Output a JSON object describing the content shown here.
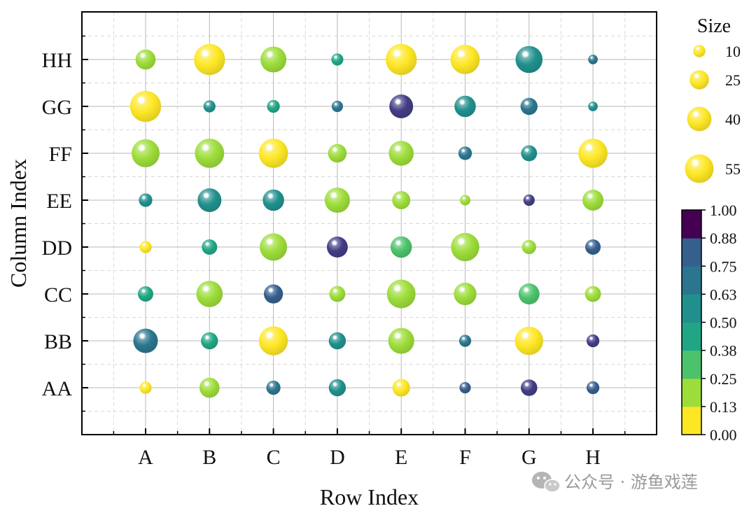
{
  "chart_data": {
    "type": "scatter",
    "subtype": "bubble",
    "xlabel": "Row Index",
    "ylabel": "Column Index",
    "x_categories": [
      "A",
      "B",
      "C",
      "D",
      "E",
      "F",
      "G",
      "H"
    ],
    "y_categories": [
      "AA",
      "BB",
      "CC",
      "DD",
      "EE",
      "FF",
      "GG",
      "HH"
    ],
    "grid": true,
    "size_legend": {
      "title": "Size",
      "position": "top-right",
      "values": [
        10,
        25,
        40,
        55
      ]
    },
    "colorbar": {
      "position": "right",
      "ticks": [
        "1.00",
        "0.88",
        "0.75",
        "0.63",
        "0.50",
        "0.38",
        "0.25",
        "0.13",
        "0.00"
      ],
      "range": [
        0,
        1
      ],
      "colors": [
        "#fde725",
        "#9ddd3a",
        "#4cc26c",
        "#21a685",
        "#21908d",
        "#2b768e",
        "#355f8d",
        "#433d84",
        "#440154"
      ]
    },
    "points": [
      {
        "x": "A",
        "y": "AA",
        "size": 8,
        "color_value": 0.05
      },
      {
        "x": "B",
        "y": "AA",
        "size": 22,
        "color_value": 0.2
      },
      {
        "x": "C",
        "y": "AA",
        "size": 11,
        "color_value": 0.7
      },
      {
        "x": "D",
        "y": "AA",
        "size": 16,
        "color_value": 0.55
      },
      {
        "x": "E",
        "y": "AA",
        "size": 17,
        "color_value": 0.05
      },
      {
        "x": "F",
        "y": "AA",
        "size": 7,
        "color_value": 0.8
      },
      {
        "x": "G",
        "y": "AA",
        "size": 15,
        "color_value": 0.95
      },
      {
        "x": "H",
        "y": "AA",
        "size": 9,
        "color_value": 0.8
      },
      {
        "x": "A",
        "y": "BB",
        "size": 33,
        "color_value": 0.7
      },
      {
        "x": "B",
        "y": "BB",
        "size": 16,
        "color_value": 0.45
      },
      {
        "x": "C",
        "y": "BB",
        "size": 46,
        "color_value": 0.05
      },
      {
        "x": "D",
        "y": "BB",
        "size": 16,
        "color_value": 0.58
      },
      {
        "x": "E",
        "y": "BB",
        "size": 37,
        "color_value": 0.2
      },
      {
        "x": "F",
        "y": "BB",
        "size": 8,
        "color_value": 0.68
      },
      {
        "x": "G",
        "y": "BB",
        "size": 44,
        "color_value": 0.05
      },
      {
        "x": "H",
        "y": "BB",
        "size": 9,
        "color_value": 0.95
      },
      {
        "x": "A",
        "y": "CC",
        "size": 13,
        "color_value": 0.45
      },
      {
        "x": "B",
        "y": "CC",
        "size": 38,
        "color_value": 0.2
      },
      {
        "x": "C",
        "y": "CC",
        "size": 20,
        "color_value": 0.82
      },
      {
        "x": "D",
        "y": "CC",
        "size": 14,
        "color_value": 0.2
      },
      {
        "x": "E",
        "y": "CC",
        "size": 45,
        "color_value": 0.2
      },
      {
        "x": "F",
        "y": "CC",
        "size": 28,
        "color_value": 0.2
      },
      {
        "x": "G",
        "y": "CC",
        "size": 24,
        "color_value": 0.32
      },
      {
        "x": "H",
        "y": "CC",
        "size": 14,
        "color_value": 0.2
      },
      {
        "x": "A",
        "y": "DD",
        "size": 8,
        "color_value": 0.05
      },
      {
        "x": "B",
        "y": "DD",
        "size": 13,
        "color_value": 0.45
      },
      {
        "x": "C",
        "y": "DD",
        "size": 41,
        "color_value": 0.2
      },
      {
        "x": "D",
        "y": "DD",
        "size": 24,
        "color_value": 0.98
      },
      {
        "x": "E",
        "y": "DD",
        "size": 25,
        "color_value": 0.32
      },
      {
        "x": "F",
        "y": "DD",
        "size": 44,
        "color_value": 0.2
      },
      {
        "x": "G",
        "y": "DD",
        "size": 11,
        "color_value": 0.2
      },
      {
        "x": "H",
        "y": "DD",
        "size": 13,
        "color_value": 0.82
      },
      {
        "x": "A",
        "y": "EE",
        "size": 10,
        "color_value": 0.58
      },
      {
        "x": "B",
        "y": "EE",
        "size": 31,
        "color_value": 0.5
      },
      {
        "x": "C",
        "y": "EE",
        "size": 25,
        "color_value": 0.58
      },
      {
        "x": "D",
        "y": "EE",
        "size": 35,
        "color_value": 0.2
      },
      {
        "x": "E",
        "y": "EE",
        "size": 18,
        "color_value": 0.2
      },
      {
        "x": "F",
        "y": "EE",
        "size": 6,
        "color_value": 0.2
      },
      {
        "x": "G",
        "y": "EE",
        "size": 7,
        "color_value": 0.95
      },
      {
        "x": "H",
        "y": "EE",
        "size": 24,
        "color_value": 0.2
      },
      {
        "x": "A",
        "y": "FF",
        "size": 43,
        "color_value": 0.2
      },
      {
        "x": "B",
        "y": "FF",
        "size": 47,
        "color_value": 0.2
      },
      {
        "x": "C",
        "y": "FF",
        "size": 47,
        "color_value": 0.05
      },
      {
        "x": "D",
        "y": "FF",
        "size": 19,
        "color_value": 0.2
      },
      {
        "x": "E",
        "y": "FF",
        "size": 34,
        "color_value": 0.2
      },
      {
        "x": "F",
        "y": "FF",
        "size": 10,
        "color_value": 0.7
      },
      {
        "x": "G",
        "y": "FF",
        "size": 14,
        "color_value": 0.58
      },
      {
        "x": "H",
        "y": "FF",
        "size": 47,
        "color_value": 0.05
      },
      {
        "x": "A",
        "y": "GG",
        "size": 53,
        "color_value": 0.05
      },
      {
        "x": "B",
        "y": "GG",
        "size": 8,
        "color_value": 0.58
      },
      {
        "x": "C",
        "y": "GG",
        "size": 9,
        "color_value": 0.45
      },
      {
        "x": "D",
        "y": "GG",
        "size": 7,
        "color_value": 0.7
      },
      {
        "x": "E",
        "y": "GG",
        "size": 31,
        "color_value": 0.98
      },
      {
        "x": "F",
        "y": "GG",
        "size": 25,
        "color_value": 0.58
      },
      {
        "x": "G",
        "y": "GG",
        "size": 16,
        "color_value": 0.7
      },
      {
        "x": "H",
        "y": "GG",
        "size": 5,
        "color_value": 0.58
      },
      {
        "x": "A",
        "y": "HH",
        "size": 22,
        "color_value": 0.2
      },
      {
        "x": "B",
        "y": "HH",
        "size": 53,
        "color_value": 0.05
      },
      {
        "x": "C",
        "y": "HH",
        "size": 37,
        "color_value": 0.2
      },
      {
        "x": "D",
        "y": "HH",
        "size": 8,
        "color_value": 0.45
      },
      {
        "x": "E",
        "y": "HH",
        "size": 53,
        "color_value": 0.05
      },
      {
        "x": "F",
        "y": "HH",
        "size": 47,
        "color_value": 0.05
      },
      {
        "x": "G",
        "y": "HH",
        "size": 40,
        "color_value": 0.58
      },
      {
        "x": "H",
        "y": "HH",
        "size": 5,
        "color_value": 0.7
      }
    ]
  },
  "watermark": {
    "text": "公众号 · 游鱼戏莲",
    "icon": "wechat-icon"
  }
}
